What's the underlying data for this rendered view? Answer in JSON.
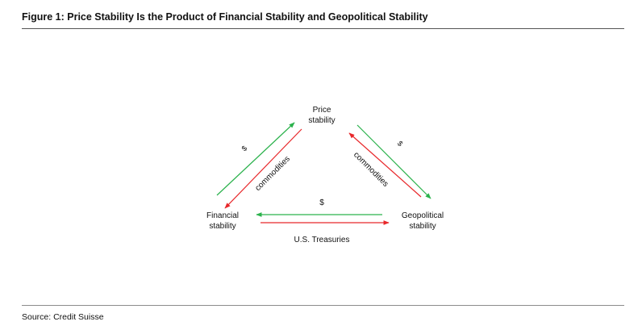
{
  "title": "Figure 1: Price Stability Is the Product of Financial Stability and Geopolitical Stability",
  "source": "Source: Credit Suisse",
  "nodes": {
    "price": [
      "Price",
      "stability"
    ],
    "financial": [
      "Financial",
      "stability"
    ],
    "geopolitical": [
      "Geopolitical",
      "stability"
    ]
  },
  "edge_labels": {
    "left_dollar": "$",
    "left_commodities": "commodities",
    "right_dollar": "$",
    "right_commodities": "commodities",
    "bottom_dollar": "$",
    "bottom_treasuries": "U.S. Treasuries"
  },
  "colors": {
    "green": "#2bb24c",
    "red": "#e8272a"
  }
}
